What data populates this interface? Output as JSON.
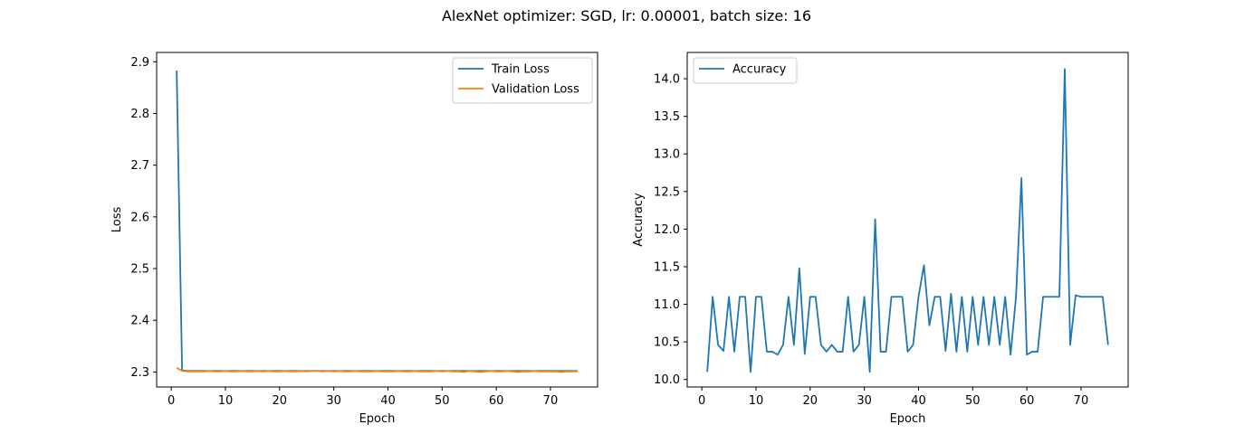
{
  "figure": {
    "title": "AlexNet optimizer: SGD, lr: 0.00001, batch size: 16"
  },
  "chart_data": [
    {
      "type": "line",
      "title": "",
      "xlabel": "Epoch",
      "ylabel": "Loss",
      "xlim": [
        -2.7,
        78.7
      ],
      "ylim": [
        2.271,
        2.918
      ],
      "xticks": [
        0,
        10,
        20,
        30,
        40,
        50,
        60,
        70
      ],
      "yticks": [
        2.3,
        2.4,
        2.5,
        2.6,
        2.7,
        2.8,
        2.9
      ],
      "grid": false,
      "legend_position": "top-right",
      "x": [
        1,
        2,
        3,
        4,
        5,
        6,
        7,
        8,
        9,
        10,
        11,
        12,
        13,
        14,
        15,
        16,
        17,
        18,
        19,
        20,
        21,
        22,
        23,
        24,
        25,
        26,
        27,
        28,
        29,
        30,
        31,
        32,
        33,
        34,
        35,
        36,
        37,
        38,
        39,
        40,
        41,
        42,
        43,
        44,
        45,
        46,
        47,
        48,
        49,
        50,
        51,
        52,
        53,
        54,
        55,
        56,
        57,
        58,
        59,
        60,
        61,
        62,
        63,
        64,
        65,
        66,
        67,
        68,
        69,
        70,
        71,
        72,
        73,
        74,
        75
      ],
      "series": [
        {
          "name": "Train Loss",
          "color": "#1f77b4",
          "values": [
            2.883,
            2.303,
            2.302,
            2.302,
            2.302,
            2.302,
            2.302,
            2.302,
            2.302,
            2.302,
            2.302,
            2.302,
            2.302,
            2.302,
            2.302,
            2.302,
            2.302,
            2.302,
            2.302,
            2.302,
            2.302,
            2.302,
            2.302,
            2.302,
            2.302,
            2.302,
            2.302,
            2.302,
            2.302,
            2.302,
            2.302,
            2.302,
            2.302,
            2.302,
            2.302,
            2.302,
            2.302,
            2.302,
            2.302,
            2.302,
            2.302,
            2.302,
            2.302,
            2.302,
            2.302,
            2.302,
            2.302,
            2.302,
            2.302,
            2.302,
            2.302,
            2.302,
            2.302,
            2.302,
            2.302,
            2.302,
            2.302,
            2.302,
            2.302,
            2.302,
            2.302,
            2.302,
            2.302,
            2.302,
            2.302,
            2.302,
            2.302,
            2.302,
            2.302,
            2.302,
            2.302,
            2.302,
            2.302,
            2.302,
            2.302
          ]
        },
        {
          "name": "Validation Loss",
          "color": "#ff7f0e",
          "values": [
            2.308,
            2.302,
            2.301,
            2.301,
            2.301,
            2.301,
            2.302,
            2.301,
            2.301,
            2.302,
            2.301,
            2.301,
            2.302,
            2.301,
            2.301,
            2.302,
            2.301,
            2.302,
            2.301,
            2.301,
            2.302,
            2.301,
            2.301,
            2.302,
            2.301,
            2.302,
            2.302,
            2.301,
            2.302,
            2.301,
            2.302,
            2.301,
            2.301,
            2.302,
            2.301,
            2.301,
            2.301,
            2.302,
            2.301,
            2.301,
            2.301,
            2.302,
            2.301,
            2.301,
            2.302,
            2.301,
            2.301,
            2.301,
            2.302,
            2.301,
            2.302,
            2.301,
            2.301,
            2.3,
            2.302,
            2.301,
            2.3,
            2.301,
            2.302,
            2.301,
            2.301,
            2.302,
            2.301,
            2.3,
            2.301,
            2.301,
            2.302,
            2.301,
            2.301,
            2.301,
            2.301,
            2.3,
            2.301,
            2.301,
            2.301
          ]
        }
      ]
    },
    {
      "type": "line",
      "title": "",
      "xlabel": "Epoch",
      "ylabel": "Accuracy",
      "xlim": [
        -2.7,
        78.7
      ],
      "ylim": [
        9.9,
        14.35
      ],
      "xticks": [
        0,
        10,
        20,
        30,
        40,
        50,
        60,
        70
      ],
      "yticks": [
        10.0,
        10.5,
        11.0,
        11.5,
        12.0,
        12.5,
        13.0,
        13.5,
        14.0
      ],
      "grid": false,
      "legend_position": "top-left",
      "x": [
        1,
        2,
        3,
        4,
        5,
        6,
        7,
        8,
        9,
        10,
        11,
        12,
        13,
        14,
        15,
        16,
        17,
        18,
        19,
        20,
        21,
        22,
        23,
        24,
        25,
        26,
        27,
        28,
        29,
        30,
        31,
        32,
        33,
        34,
        35,
        36,
        37,
        38,
        39,
        40,
        41,
        42,
        43,
        44,
        45,
        46,
        47,
        48,
        49,
        50,
        51,
        52,
        53,
        54,
        55,
        56,
        57,
        58,
        59,
        60,
        61,
        62,
        63,
        64,
        65,
        66,
        67,
        68,
        69,
        70,
        71,
        72,
        73,
        74,
        75
      ],
      "series": [
        {
          "name": "Accuracy",
          "color": "#1f77b4",
          "values": [
            10.1,
            11.1,
            10.46,
            10.38,
            11.1,
            10.37,
            11.1,
            11.1,
            10.1,
            11.1,
            11.1,
            10.37,
            10.37,
            10.33,
            10.46,
            11.1,
            10.46,
            11.48,
            10.34,
            11.1,
            11.1,
            10.46,
            10.37,
            10.46,
            10.37,
            10.37,
            11.1,
            10.37,
            10.46,
            11.1,
            10.1,
            12.13,
            10.37,
            10.37,
            11.1,
            11.1,
            11.1,
            10.37,
            10.46,
            11.1,
            11.52,
            10.72,
            11.1,
            11.1,
            10.38,
            11.14,
            10.37,
            11.1,
            10.37,
            11.1,
            10.46,
            11.1,
            10.46,
            11.1,
            10.46,
            11.1,
            10.33,
            11.1,
            12.68,
            10.33,
            10.37,
            10.37,
            11.1,
            11.1,
            11.1,
            11.1,
            14.13,
            10.46,
            11.12,
            11.1,
            11.1,
            11.1,
            11.1,
            11.1,
            10.46
          ]
        }
      ]
    }
  ]
}
